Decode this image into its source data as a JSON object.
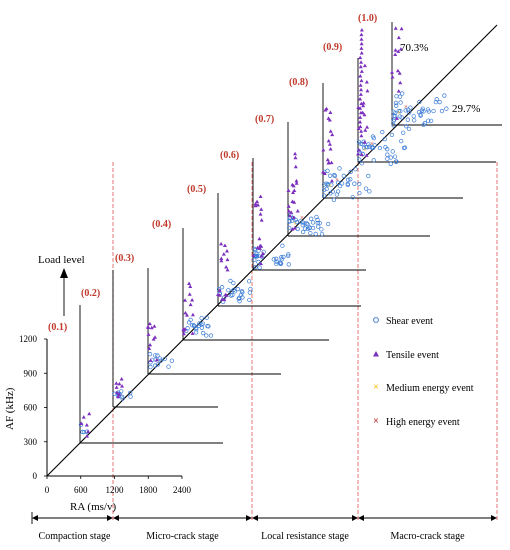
{
  "chart_data": {
    "type": "scatter",
    "title": "",
    "xlabel": "RA (ms/v)",
    "ylabel": "AF (kHz)",
    "x_ticks": [
      "0",
      "600",
      "1200",
      "1800",
      "2400"
    ],
    "y_ticks": [
      "0",
      "300",
      "600",
      "900",
      "1200"
    ],
    "xlim": [
      0,
      2400
    ],
    "ylim": [
      0,
      1200
    ],
    "load_axis_label": "Load level",
    "load_levels": [
      "(0.1)",
      "(0.2)",
      "(0.3)",
      "(0.4)",
      "(0.5)",
      "(0.6)",
      "(0.7)",
      "(0.8)",
      "(0.9)",
      "(1.0)"
    ],
    "region_labels": {
      "above": "70.3%",
      "below": "29.7%"
    },
    "stages": [
      "Compaction stage",
      "Micro-crack stage",
      "Local resistance stage",
      "Macro-crack stage"
    ],
    "legend": {
      "placement": "right",
      "entries": [
        {
          "label": "Shear event",
          "marker": "circle",
          "color": "#3a7bd5"
        },
        {
          "label": "Tensile event",
          "marker": "triangle",
          "color": "#7b2fbe"
        },
        {
          "label": "Medium energy event",
          "marker": "x",
          "color": "#f0c020"
        },
        {
          "label": "High energy event",
          "marker": "x",
          "color": "#c0282a"
        }
      ]
    },
    "colors": {
      "label_red": "#c0392b",
      "shear": "#3a7bd5",
      "tensile": "#7b2fbe",
      "medium": "#f0c020",
      "high": "#c0282a"
    }
  }
}
